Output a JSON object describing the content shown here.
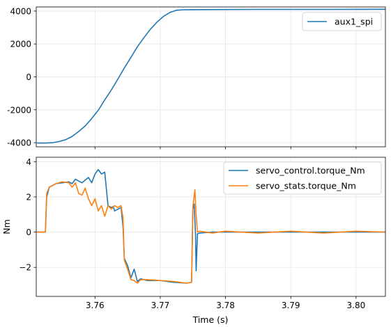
{
  "chart_data": [
    {
      "type": "line",
      "title": "",
      "xlabel": "",
      "ylabel": "",
      "xlim": [
        3.751,
        3.8045
      ],
      "ylim": [
        -4250,
        4250
      ],
      "xticks": [
        3.76,
        3.77,
        3.78,
        3.79,
        3.8
      ],
      "xtick_labels_shown": false,
      "yticks": [
        -4000,
        -2000,
        0,
        2000,
        4000
      ],
      "ytick_labels": [
        "-4000",
        "-2000",
        "0",
        "2000",
        "4000"
      ],
      "grid": true,
      "legend_position": "top-right",
      "series": [
        {
          "name": "aux1_spi",
          "color": "#1f77b4",
          "x": [
            3.7511,
            3.7525,
            3.7535,
            3.7545,
            3.7555,
            3.7565,
            3.7575,
            3.7585,
            3.7595,
            3.7605,
            3.7615,
            3.7625,
            3.7635,
            3.7645,
            3.7655,
            3.7665,
            3.7675,
            3.7685,
            3.7695,
            3.7705,
            3.7715,
            3.7725,
            3.7735,
            3.7745,
            3.776,
            3.78,
            3.785,
            3.79,
            3.795,
            3.8,
            3.8045
          ],
          "y": [
            -4020,
            -4020,
            -4000,
            -3930,
            -3820,
            -3620,
            -3320,
            -2980,
            -2530,
            -2030,
            -1400,
            -800,
            -130,
            540,
            1180,
            1830,
            2380,
            2900,
            3330,
            3680,
            3920,
            4050,
            4080,
            4085,
            4090,
            4095,
            4100,
            4100,
            4100,
            4105,
            4110
          ]
        }
      ]
    },
    {
      "type": "line",
      "title": "",
      "xlabel": "Time (s)",
      "ylabel": "Nm",
      "xlim": [
        3.751,
        3.8045
      ],
      "ylim": [
        -3.65,
        4.25
      ],
      "xticks": [
        3.76,
        3.77,
        3.78,
        3.79,
        3.8
      ],
      "xtick_labels": [
        "3.76",
        "3.77",
        "3.78",
        "3.79",
        "3.80"
      ],
      "yticks": [
        -2,
        0,
        2,
        4
      ],
      "ytick_labels": [
        "−2",
        "0",
        "2",
        "4"
      ],
      "grid": true,
      "legend_position": "top-right",
      "series": [
        {
          "name": "servo_control.torque_Nm",
          "color": "#1f77b4",
          "x": [
            3.7511,
            3.7524,
            3.7526,
            3.753,
            3.754,
            3.755,
            3.756,
            3.7565,
            3.757,
            3.7575,
            3.758,
            3.7585,
            3.759,
            3.7595,
            3.76,
            3.7605,
            3.761,
            3.7615,
            3.762,
            3.7625,
            3.7628,
            3.763,
            3.7635,
            3.764,
            3.7643,
            3.7645,
            3.765,
            3.7655,
            3.766,
            3.7665,
            3.767,
            3.768,
            3.77,
            3.772,
            3.774,
            3.7748,
            3.775,
            3.7752,
            3.7754,
            3.7755,
            3.7757,
            3.776,
            3.778,
            3.78,
            3.785,
            3.79,
            3.795,
            3.8,
            3.8045
          ],
          "y": [
            0,
            0,
            2.0,
            2.55,
            2.75,
            2.8,
            2.85,
            2.75,
            3.0,
            2.9,
            2.8,
            2.95,
            3.1,
            2.8,
            3.3,
            3.55,
            3.3,
            3.4,
            1.5,
            1.4,
            1.45,
            1.2,
            1.3,
            1.4,
            0.3,
            -1.5,
            -1.9,
            -2.6,
            -2.1,
            -2.8,
            -2.65,
            -2.75,
            -2.75,
            -2.85,
            -2.9,
            -2.85,
            1.3,
            1.6,
            -0.1,
            -2.2,
            -0.1,
            -0.05,
            0.0,
            0.0,
            0.0,
            0.0,
            0.0,
            0.0,
            0.0
          ]
        },
        {
          "name": "servo_stats.torque_Nm",
          "color": "#ff7f0e",
          "x": [
            3.7511,
            3.7524,
            3.7526,
            3.753,
            3.754,
            3.755,
            3.756,
            3.7565,
            3.757,
            3.7575,
            3.758,
            3.7585,
            3.759,
            3.7595,
            3.76,
            3.7605,
            3.761,
            3.7615,
            3.762,
            3.7625,
            3.763,
            3.7635,
            3.764,
            3.7643,
            3.7645,
            3.765,
            3.7655,
            3.766,
            3.7665,
            3.767,
            3.768,
            3.77,
            3.772,
            3.774,
            3.7748,
            3.775,
            3.7753,
            3.7755,
            3.7757,
            3.776,
            3.778,
            3.78,
            3.785,
            3.79,
            3.795,
            3.8,
            3.8045
          ],
          "y": [
            0,
            0,
            2.2,
            2.55,
            2.75,
            2.85,
            2.8,
            2.55,
            2.8,
            2.2,
            2.1,
            2.5,
            1.9,
            1.5,
            1.9,
            1.2,
            1.5,
            0.9,
            1.5,
            1.3,
            1.5,
            1.4,
            1.5,
            0.8,
            -1.6,
            -2.1,
            -2.7,
            -2.75,
            -2.9,
            -2.7,
            -2.7,
            -2.75,
            -2.8,
            -2.9,
            -2.85,
            1.4,
            2.4,
            1.0,
            0.0,
            0.05,
            -0.05,
            0.05,
            -0.05,
            0.05,
            -0.05,
            0.05,
            0.0
          ]
        }
      ]
    }
  ]
}
